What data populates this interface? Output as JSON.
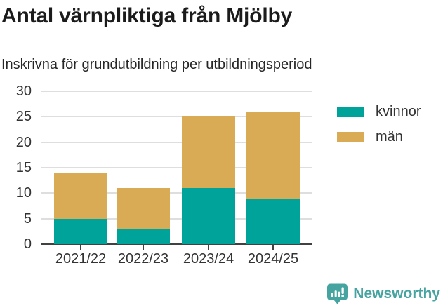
{
  "header": {
    "title": "Antal värnpliktiga från Mjölby",
    "subtitle": "Inskrivna för grundutbildning per utbildningsperiod"
  },
  "chart_data": {
    "type": "bar",
    "stacked": true,
    "title": "Antal värnpliktiga från Mjölby",
    "subtitle": "Inskrivna för grundutbildning per utbildningsperiod",
    "categories": [
      "2021/22",
      "2022/23",
      "2023/24",
      "2024/25"
    ],
    "series": [
      {
        "name": "kvinnor",
        "color": "#00a39a",
        "values": [
          5,
          3,
          11,
          9
        ]
      },
      {
        "name": "män",
        "color": "#d9ab55",
        "values": [
          9,
          8,
          14,
          17
        ]
      }
    ],
    "totals": [
      14,
      11,
      25,
      26
    ],
    "xlabel": "",
    "ylabel": "",
    "ylim": [
      0,
      30
    ],
    "yticks": [
      0,
      5,
      10,
      15,
      20,
      25,
      30
    ],
    "grid": true,
    "legend_position": "right-top",
    "grid_color": "#dedede",
    "axis_color": "#414141",
    "label_color": "#333333"
  },
  "footer": {
    "brand": "Newsworthy",
    "brand_color": "#45a3a0"
  }
}
